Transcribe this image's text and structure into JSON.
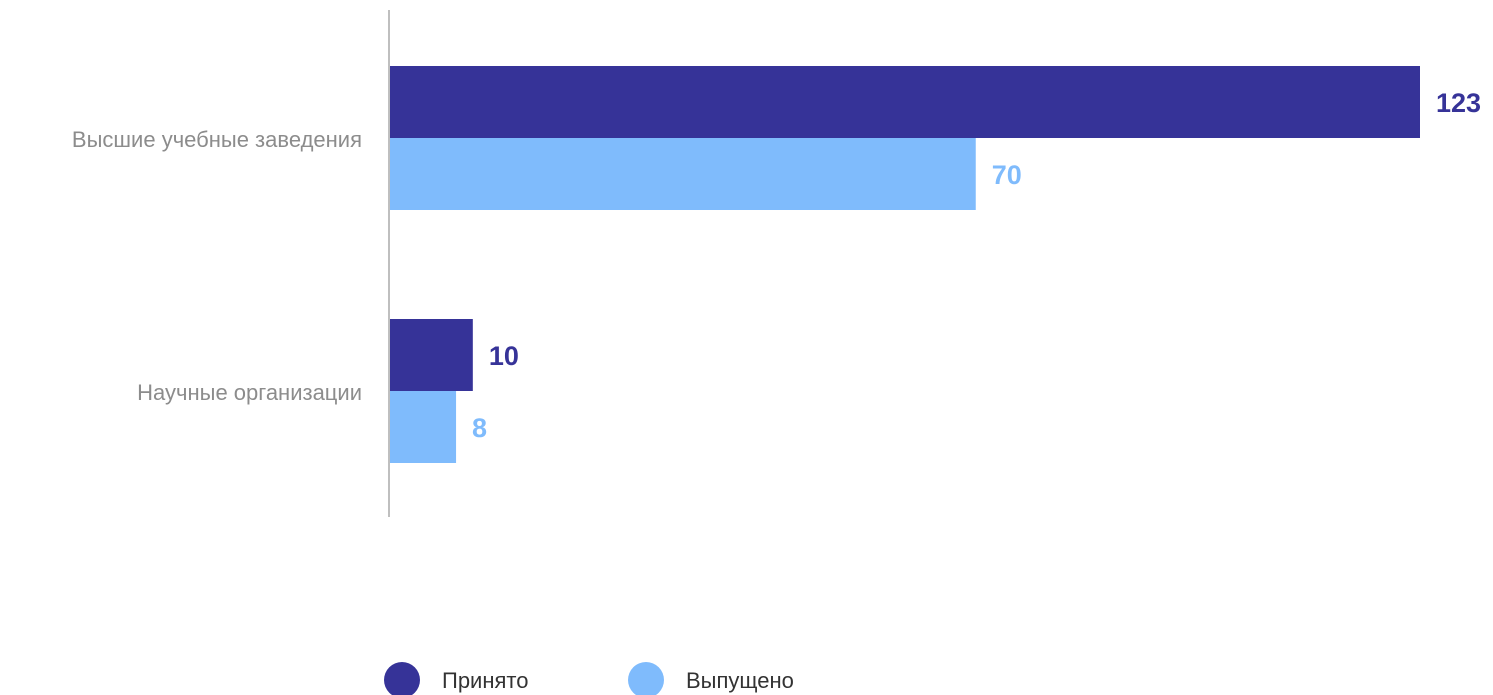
{
  "chart_data": {
    "type": "bar",
    "orientation": "horizontal",
    "title": "",
    "xlabel": "",
    "ylabel": "",
    "categories": [
      "Высшие учебные заведения",
      "Научные организации"
    ],
    "series": [
      {
        "name": "Принято",
        "values": [
          123,
          10
        ],
        "color": "#363398"
      },
      {
        "name": "Выпущено",
        "values": [
          70,
          8
        ],
        "color": "#7fbbfc"
      }
    ],
    "xlim": [
      0,
      123
    ],
    "grid": false,
    "axis_color": "#bfbfbf",
    "legend_position": "bottom-center",
    "data_labels": true
  }
}
